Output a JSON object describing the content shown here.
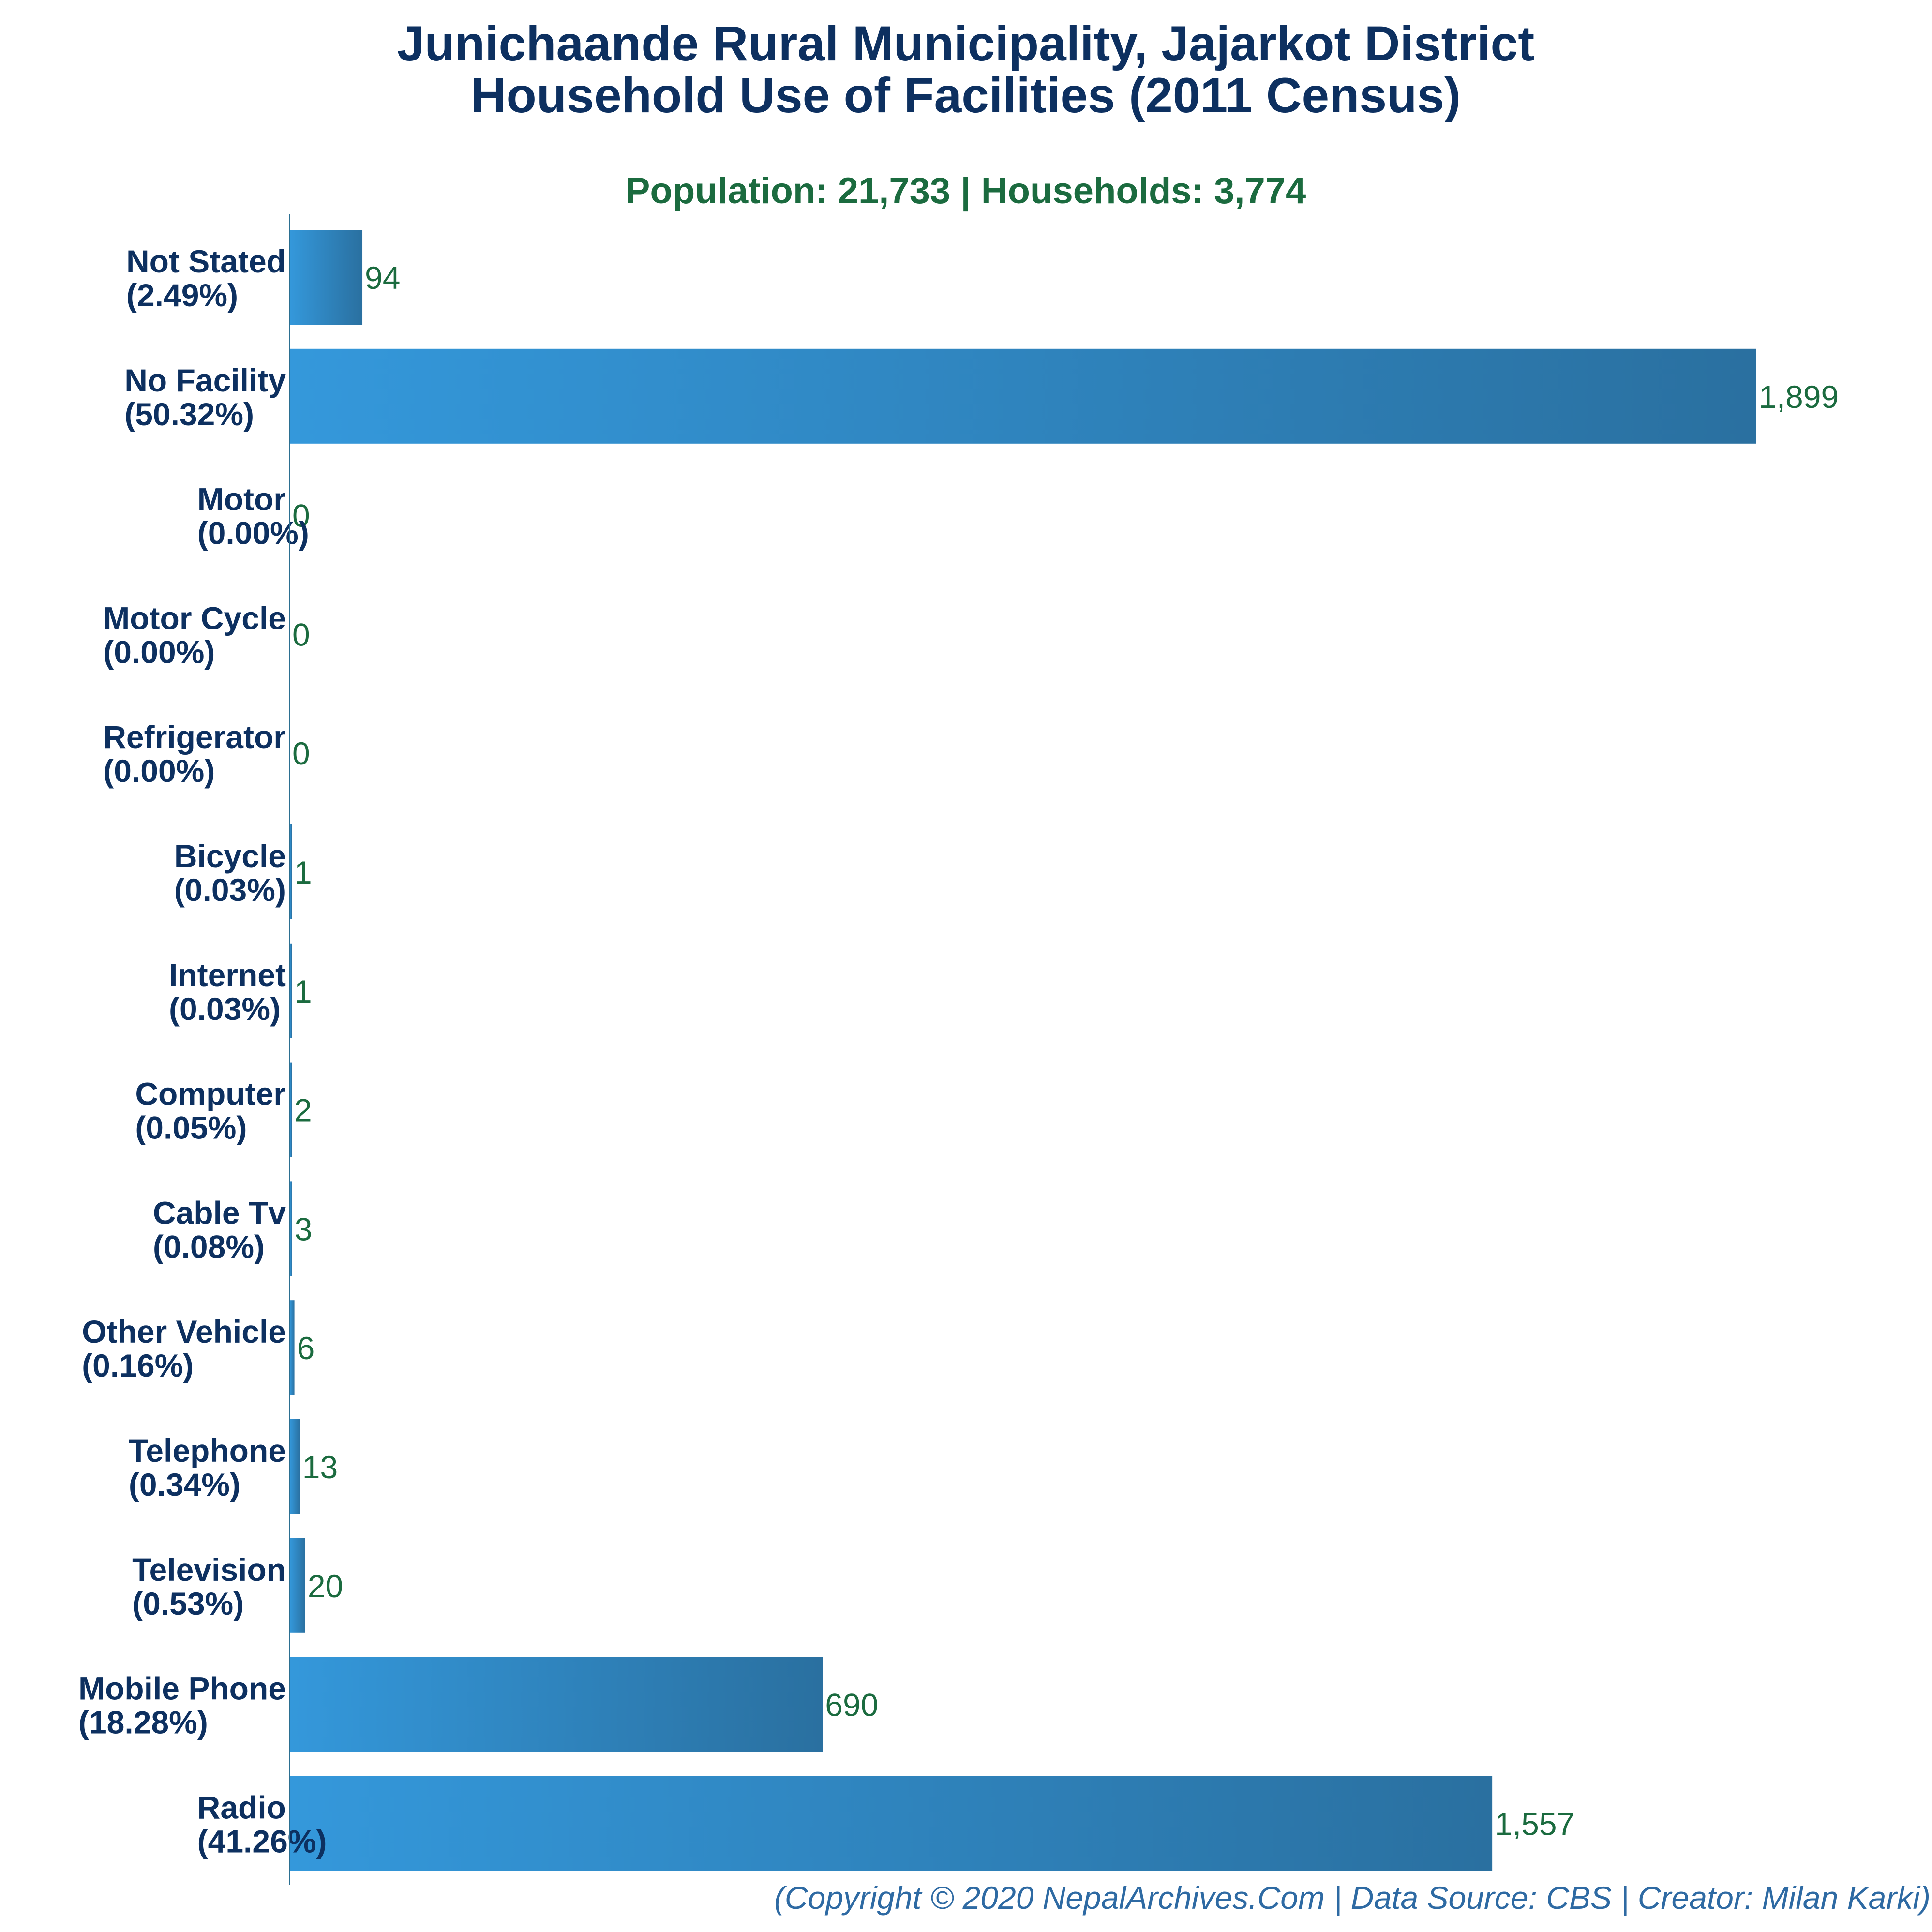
{
  "chart_data": {
    "type": "bar",
    "orientation": "horizontal",
    "title_lines": [
      "Junichaande Rural Municipality, Jajarkot District",
      "Household Use of Facilities (2011 Census)"
    ],
    "subtitle": "Population: 21,733 | Households: 3,774",
    "categories": [
      "Not Stated",
      "No Facility",
      "Motor",
      "Motor Cycle",
      "Refrigerator",
      "Bicycle",
      "Internet",
      "Computer",
      "Cable Tv",
      "Other Vehicle",
      "Telephone",
      "Television",
      "Mobile Phone",
      "Radio"
    ],
    "percent_labels": [
      "(2.49%)",
      "(50.32%)",
      "(0.00%)",
      "(0.00%)",
      "(0.00%)",
      "(0.03%)",
      "(0.03%)",
      "(0.05%)",
      "(0.08%)",
      "(0.16%)",
      "(0.34%)",
      "(0.53%)",
      "(18.28%)",
      "(41.26%)"
    ],
    "values": [
      94,
      1899,
      0,
      0,
      0,
      1,
      1,
      2,
      3,
      6,
      13,
      20,
      690,
      1557
    ],
    "value_labels": [
      "94",
      "1,899",
      "0",
      "0",
      "0",
      "1",
      "1",
      "2",
      "3",
      "6",
      "13",
      "20",
      "690",
      "1,557"
    ],
    "xlim": [
      0,
      2000
    ],
    "grid": false,
    "legend": "none",
    "xlabel": "",
    "ylabel": "",
    "colors": {
      "bar_start": "#3498db",
      "bar_end": "#2a70a0",
      "title": "#0d3060",
      "subtitle": "#1b6b3f",
      "value_text": "#1b6b3f",
      "footer": "#2e6aa3",
      "axis": "#2b6f91"
    }
  },
  "footer": "(Copyright © 2020 NepalArchives.Com | Data Source: CBS | Creator: Milan Karki)"
}
